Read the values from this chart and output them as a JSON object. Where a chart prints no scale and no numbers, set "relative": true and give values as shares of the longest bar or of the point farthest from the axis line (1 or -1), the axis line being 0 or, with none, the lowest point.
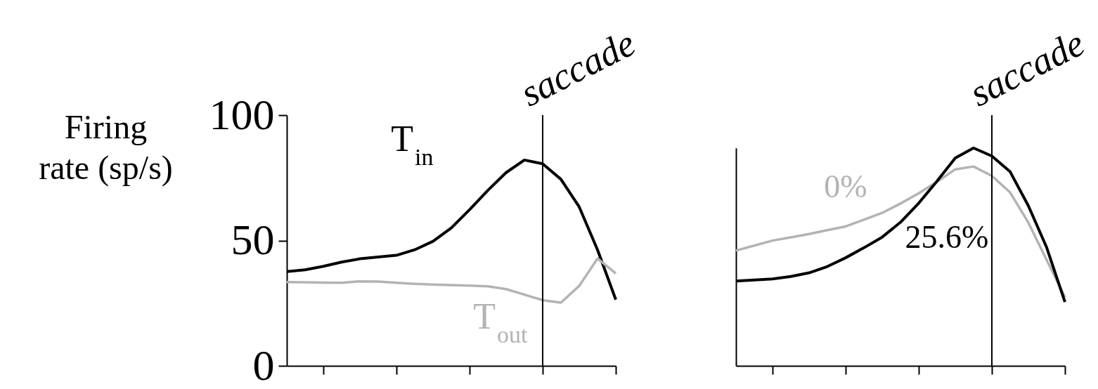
{
  "chart_data": [
    {
      "type": "line",
      "ylabel": "Firing rate (sp/s)",
      "categories": [
        null,
        null,
        null,
        null,
        null,
        null,
        null,
        null,
        null,
        null,
        null,
        null,
        null,
        null,
        null,
        null,
        null,
        null,
        null
      ],
      "ylim": [
        0,
        100
      ],
      "yticks": [
        0,
        50,
        100
      ],
      "tick_labels": "y",
      "series": [
        {
          "name": "T$_{in}$",
          "color": "#000000",
          "values": [
            37.6,
            38.3,
            39.7,
            41.4,
            42.7,
            43.4,
            44.1,
            46.3,
            49.7,
            55.0,
            62.3,
            70.0,
            77.1,
            82.1,
            80.6,
            74.4,
            63.4,
            46.3,
            26.4
          ]
        },
        {
          "name": "T$_{out}$",
          "color": "#b3b3b3",
          "values": [
            33.4,
            33.3,
            33.2,
            33.1,
            33.7,
            33.6,
            33.1,
            32.7,
            32.4,
            32.2,
            32.0,
            31.7,
            30.6,
            28.4,
            26.2,
            25.2,
            31.9,
            42.8,
            36.9
          ]
        }
      ],
      "annotations": [
        "saccade"
      ]
    },
    {
      "type": "line",
      "categories": [
        null,
        null,
        null,
        null,
        null,
        null,
        null,
        null,
        null,
        null,
        null,
        null,
        null,
        null,
        null,
        null,
        null,
        null,
        null
      ],
      "relative": true,
      "tick_labels": false,
      "series": [
        {
          "name": "0%",
          "color": "#b3b3b3",
          "values": [
            0.529,
            0.552,
            0.575,
            0.59,
            0.605,
            0.623,
            0.64,
            0.671,
            0.702,
            0.745,
            0.792,
            0.845,
            0.902,
            0.915,
            0.872,
            0.796,
            0.657,
            0.486,
            0.315
          ]
        },
        {
          "name": "25.6%",
          "color": "#000000",
          "values": [
            0.389,
            0.394,
            0.399,
            0.41,
            0.427,
            0.456,
            0.496,
            0.542,
            0.591,
            0.659,
            0.747,
            0.848,
            0.954,
            1,
            0.963,
            0.891,
            0.734,
            0.543,
            0.293
          ]
        }
      ],
      "annotations": [
        "saccade"
      ]
    }
  ]
}
